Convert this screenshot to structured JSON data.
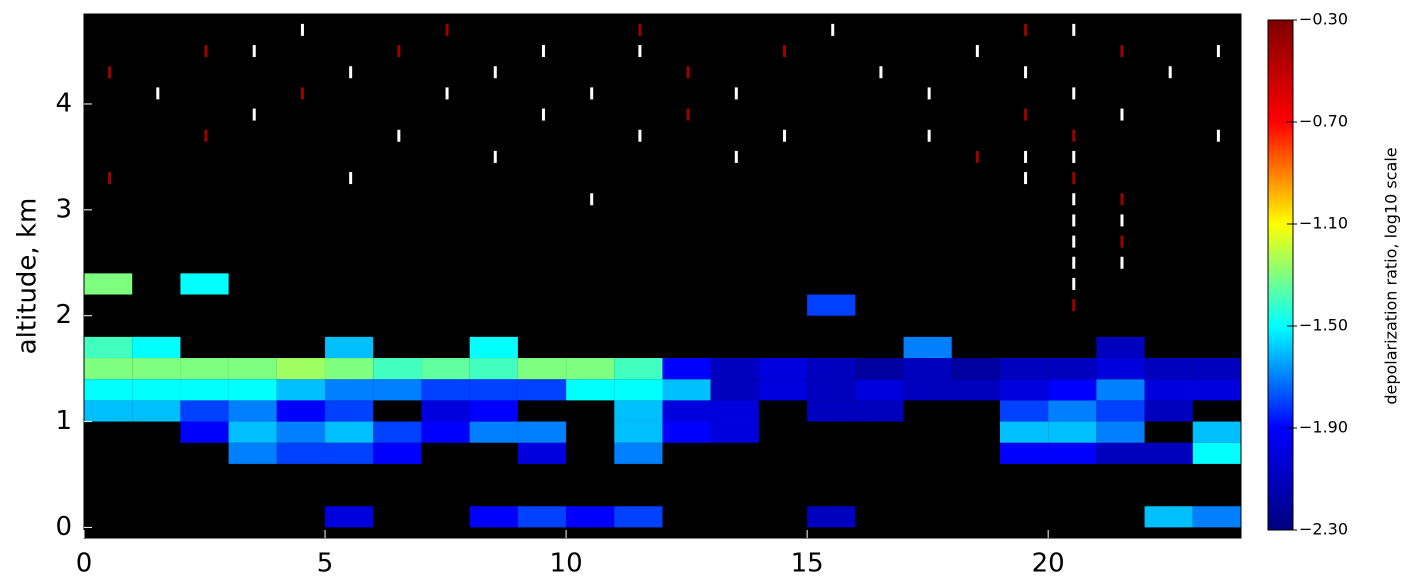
{
  "chart_data": {
    "type": "heatmap",
    "y_label": "altitude, km",
    "colorbar_label": "depolarization ratio, log10 scale",
    "xlim": [
      0,
      24
    ],
    "xticks": [
      0,
      5,
      10,
      15,
      20
    ],
    "ylim": [
      -0.1,
      4.85
    ],
    "yticks": [
      0,
      1,
      2,
      3,
      4
    ],
    "clim": [
      -2.3,
      -0.3
    ],
    "cticks": [
      {
        "value": -0.3,
        "label": "−0.30"
      },
      {
        "value": -0.7,
        "label": "−0.70"
      },
      {
        "value": -1.1,
        "label": "−1.10"
      },
      {
        "value": -1.5,
        "label": "−1.50"
      },
      {
        "value": -1.9,
        "label": "−1.90"
      },
      {
        "value": -2.3,
        "label": "−2.30"
      }
    ],
    "colors": [
      "#00007f",
      "#0000ff",
      "#00ffff",
      "#ffff00",
      "#ff0000",
      "#7f0000"
    ],
    "over_color": "#ffffff",
    "background": "#000000",
    "xbins": [
      0,
      1,
      2,
      3,
      4,
      5,
      6,
      7,
      8,
      9,
      10,
      11,
      12,
      13,
      14,
      15,
      16,
      17,
      18,
      19,
      20,
      21,
      22,
      23,
      24
    ],
    "ybins": [
      0,
      0.2,
      0.4,
      0.6,
      0.8,
      1.0,
      1.2,
      1.4,
      1.6,
      1.8,
      2.0,
      2.2,
      2.4,
      2.6,
      2.8,
      3.0,
      3.2,
      3.4,
      3.6,
      3.8,
      4.0,
      4.2,
      4.4,
      4.6,
      4.8
    ],
    "z": [
      [
        null,
        null,
        null,
        null,
        null,
        -2.0,
        null,
        null,
        -1.9,
        -1.8,
        -1.9,
        -1.8,
        null,
        null,
        null,
        -2.1,
        null,
        null,
        null,
        null,
        null,
        null,
        -1.6,
        -1.7
      ],
      [
        null,
        null,
        null,
        null,
        null,
        null,
        null,
        null,
        null,
        null,
        null,
        null,
        null,
        null,
        null,
        null,
        null,
        null,
        null,
        null,
        null,
        null,
        null,
        null
      ],
      [
        null,
        null,
        null,
        null,
        null,
        null,
        null,
        null,
        null,
        null,
        null,
        null,
        null,
        null,
        null,
        null,
        null,
        null,
        null,
        null,
        null,
        null,
        null,
        null
      ],
      [
        null,
        null,
        null,
        -1.7,
        -1.8,
        -1.8,
        -1.9,
        null,
        null,
        -2.0,
        null,
        -1.7,
        null,
        null,
        null,
        null,
        null,
        null,
        null,
        -1.9,
        -1.9,
        -2.1,
        -2.1,
        -1.5
      ],
      [
        null,
        null,
        -1.9,
        -1.6,
        -1.7,
        -1.6,
        -1.8,
        -1.9,
        -1.7,
        -1.7,
        null,
        -1.6,
        -1.9,
        -2.0,
        null,
        null,
        null,
        null,
        null,
        -1.6,
        -1.6,
        -1.7,
        null,
        -1.6
      ],
      [
        -1.6,
        -1.6,
        -1.8,
        -1.7,
        -1.9,
        -1.8,
        null,
        -2.0,
        -1.9,
        null,
        null,
        -1.6,
        -2.0,
        -2.0,
        null,
        -2.1,
        -2.1,
        null,
        null,
        -1.8,
        -1.7,
        -1.8,
        -2.1,
        null
      ],
      [
        -1.5,
        -1.5,
        -1.5,
        -1.5,
        -1.6,
        -1.7,
        -1.7,
        -1.8,
        -1.8,
        -1.8,
        -1.5,
        -1.5,
        -1.6,
        -2.1,
        -2.0,
        -2.1,
        -2.0,
        -2.1,
        -2.1,
        -2.0,
        -1.9,
        -1.7,
        -2.0,
        -2.0
      ],
      [
        -1.3,
        -1.3,
        -1.3,
        -1.3,
        -1.25,
        -1.3,
        -1.4,
        -1.35,
        -1.4,
        -1.3,
        -1.3,
        -1.4,
        -1.9,
        -2.1,
        -2.0,
        -2.1,
        -2.2,
        -2.1,
        -2.2,
        -2.1,
        -2.1,
        -2.0,
        -2.1,
        -2.1
      ],
      [
        -1.4,
        -1.5,
        null,
        null,
        null,
        -1.6,
        null,
        null,
        -1.5,
        null,
        null,
        null,
        null,
        null,
        null,
        null,
        null,
        -1.7,
        null,
        null,
        null,
        -2.1,
        null,
        null
      ],
      [
        null,
        null,
        null,
        null,
        null,
        null,
        null,
        null,
        null,
        null,
        null,
        null,
        null,
        null,
        null,
        null,
        null,
        null,
        null,
        null,
        null,
        null,
        null,
        null
      ],
      [
        null,
        null,
        null,
        null,
        null,
        null,
        null,
        null,
        null,
        null,
        null,
        null,
        null,
        null,
        null,
        -1.8,
        null,
        null,
        null,
        null,
        -0.4,
        null,
        null,
        null
      ],
      [
        -1.3,
        null,
        -1.5,
        null,
        null,
        null,
        null,
        null,
        null,
        null,
        null,
        null,
        null,
        null,
        null,
        null,
        null,
        null,
        null,
        null,
        -0.2,
        null,
        null,
        null
      ],
      [
        null,
        null,
        null,
        null,
        null,
        null,
        null,
        null,
        null,
        null,
        null,
        null,
        null,
        null,
        null,
        null,
        null,
        null,
        null,
        null,
        -0.2,
        -0.2,
        null,
        null
      ],
      [
        null,
        null,
        null,
        null,
        null,
        null,
        null,
        null,
        null,
        null,
        null,
        null,
        null,
        null,
        null,
        null,
        null,
        null,
        null,
        null,
        -0.2,
        -0.4,
        null,
        null
      ],
      [
        null,
        null,
        null,
        null,
        null,
        null,
        null,
        null,
        null,
        null,
        null,
        null,
        null,
        null,
        null,
        null,
        null,
        null,
        null,
        null,
        -0.2,
        -0.2,
        null,
        null
      ],
      [
        null,
        null,
        null,
        null,
        null,
        null,
        null,
        null,
        null,
        null,
        -0.2,
        null,
        null,
        null,
        null,
        null,
        null,
        null,
        null,
        null,
        -0.2,
        -0.4,
        null,
        null
      ],
      [
        -0.4,
        null,
        null,
        null,
        null,
        -0.2,
        null,
        null,
        null,
        null,
        null,
        null,
        null,
        null,
        null,
        null,
        null,
        null,
        null,
        -0.2,
        -0.4,
        null,
        null,
        null
      ],
      [
        null,
        null,
        null,
        null,
        null,
        null,
        null,
        null,
        -0.2,
        null,
        null,
        null,
        null,
        -0.2,
        null,
        null,
        null,
        null,
        -0.4,
        -0.2,
        -0.2,
        null,
        null,
        null
      ],
      [
        null,
        null,
        -0.4,
        null,
        null,
        null,
        -0.2,
        null,
        null,
        null,
        null,
        -0.2,
        null,
        null,
        -0.2,
        null,
        null,
        -0.2,
        null,
        null,
        -0.4,
        null,
        null,
        -0.2
      ],
      [
        null,
        null,
        null,
        -0.2,
        null,
        null,
        null,
        null,
        null,
        -0.2,
        null,
        null,
        -0.4,
        null,
        null,
        null,
        null,
        null,
        null,
        -0.4,
        null,
        -0.2,
        null,
        null
      ],
      [
        null,
        -0.2,
        null,
        null,
        -0.4,
        null,
        null,
        -0.2,
        null,
        null,
        -0.2,
        null,
        null,
        -0.2,
        null,
        null,
        null,
        -0.2,
        null,
        null,
        -0.2,
        null,
        null,
        null
      ],
      [
        -0.4,
        null,
        null,
        null,
        null,
        -0.2,
        null,
        null,
        -0.2,
        null,
        null,
        null,
        -0.4,
        null,
        null,
        null,
        -0.2,
        null,
        null,
        -0.2,
        null,
        null,
        -0.2,
        null
      ],
      [
        null,
        null,
        -0.4,
        -0.2,
        null,
        null,
        -0.4,
        null,
        null,
        -0.2,
        null,
        -0.2,
        null,
        null,
        -0.4,
        null,
        null,
        null,
        -0.2,
        null,
        null,
        -0.4,
        null,
        -0.2
      ],
      [
        null,
        null,
        null,
        null,
        -0.2,
        null,
        null,
        -0.4,
        null,
        null,
        null,
        -0.4,
        null,
        null,
        null,
        -0.2,
        null,
        null,
        null,
        -0.4,
        -0.2,
        null,
        null,
        null
      ]
    ]
  }
}
